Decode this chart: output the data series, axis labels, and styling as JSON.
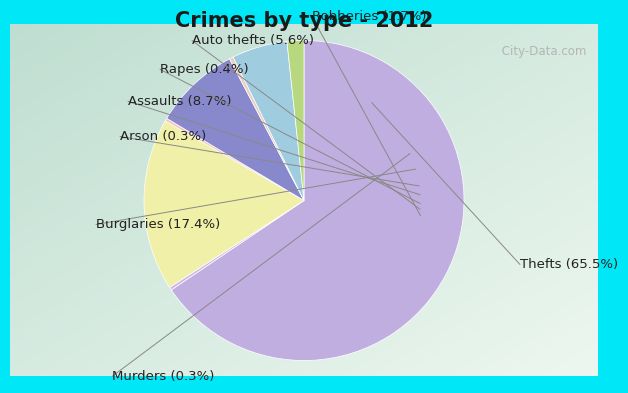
{
  "title": "Crimes by type - 2012",
  "slices": [
    {
      "label": "Thefts (65.5%)",
      "value": 65.5,
      "color": "#c0aee0"
    },
    {
      "label": "Murders (0.3%)",
      "value": 0.3,
      "color": "#d0b8e8"
    },
    {
      "label": "Burglaries (17.4%)",
      "value": 17.4,
      "color": "#f0f0a8"
    },
    {
      "label": "Arson (0.3%)",
      "value": 0.3,
      "color": "#f5c8c0"
    },
    {
      "label": "Assaults (8.7%)",
      "value": 8.7,
      "color": "#8888cc"
    },
    {
      "label": "Rapes (0.4%)",
      "value": 0.4,
      "color": "#e8d0c0"
    },
    {
      "label": "Auto thefts (5.6%)",
      "value": 5.6,
      "color": "#a0cce0"
    },
    {
      "label": "Robberies (1.7%)",
      "value": 1.7,
      "color": "#b8d880"
    }
  ],
  "bg_cyan": "#00e8f8",
  "bg_top_green": "#c8e8d8",
  "bg_bottom_green": "#d8f0e0",
  "title_fontsize": 15,
  "label_fontsize": 9.5,
  "watermark": " City-Data.com"
}
